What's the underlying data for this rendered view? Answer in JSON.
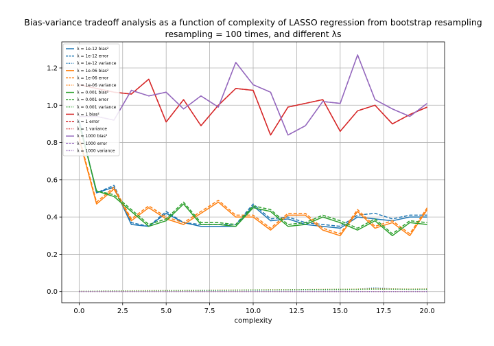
{
  "chart_data": {
    "type": "line",
    "title_line1": "Bias-variance tradeoff analysis as a function of complexity of LASSO regression from bootstrap resampling",
    "title_line2": "resampling = 100 times, and different λs",
    "xlabel": "complexity",
    "ylabel": "",
    "xlim": [
      -1,
      21
    ],
    "ylim": [
      -0.06,
      1.34
    ],
    "xticks": [
      0.0,
      2.5,
      5.0,
      7.5,
      10.0,
      12.5,
      15.0,
      17.5,
      20.0
    ],
    "xtick_labels": [
      "0.0",
      "2.5",
      "5.0",
      "7.5",
      "10.0",
      "12.5",
      "15.0",
      "17.5",
      "20.0"
    ],
    "yticks": [
      0.0,
      0.2,
      0.4,
      0.6,
      0.8,
      1.0,
      1.2
    ],
    "ytick_labels": [
      "0.0",
      "0.2",
      "0.4",
      "0.6",
      "0.8",
      "1.0",
      "1.2"
    ],
    "grid": true,
    "legend_position": "top-left",
    "x": [
      0,
      1,
      2,
      3,
      4,
      5,
      6,
      7,
      8,
      9,
      10,
      11,
      12,
      13,
      14,
      15,
      16,
      17,
      18,
      19,
      20
    ],
    "series": [
      {
        "name": "λ = 1e-12 bias²",
        "color": "#1f77b4",
        "style": "solid",
        "values": [
          0.92,
          0.53,
          0.56,
          0.36,
          0.35,
          0.42,
          0.37,
          0.35,
          0.35,
          0.35,
          0.46,
          0.38,
          0.39,
          0.36,
          0.35,
          0.34,
          0.4,
          0.39,
          0.38,
          0.4,
          0.4
        ]
      },
      {
        "name": "λ = 1e-12 error",
        "color": "#1f77b4",
        "style": "dashed",
        "values": [
          0.92,
          0.53,
          0.57,
          0.37,
          0.35,
          0.43,
          0.37,
          0.36,
          0.36,
          0.36,
          0.47,
          0.39,
          0.4,
          0.37,
          0.36,
          0.35,
          0.41,
          0.42,
          0.39,
          0.41,
          0.41
        ]
      },
      {
        "name": "λ = 1e-12 variance",
        "color": "#1f77b4",
        "style": "dotted",
        "values": [
          0.001,
          0.002,
          0.003,
          0.003,
          0.004,
          0.005,
          0.005,
          0.006,
          0.006,
          0.007,
          0.007,
          0.008,
          0.008,
          0.009,
          0.009,
          0.01,
          0.012,
          0.02,
          0.014,
          0.012,
          0.012
        ]
      },
      {
        "name": "λ = 1e-06 bias²",
        "color": "#ff7f0e",
        "style": "solid",
        "values": [
          0.82,
          0.47,
          0.55,
          0.38,
          0.45,
          0.39,
          0.36,
          0.42,
          0.48,
          0.4,
          0.4,
          0.33,
          0.41,
          0.41,
          0.33,
          0.3,
          0.43,
          0.34,
          0.37,
          0.3,
          0.44
        ]
      },
      {
        "name": "λ = 1e-06 error",
        "color": "#ff7f0e",
        "style": "dashed",
        "values": [
          0.83,
          0.48,
          0.56,
          0.39,
          0.46,
          0.4,
          0.37,
          0.43,
          0.49,
          0.41,
          0.41,
          0.34,
          0.42,
          0.42,
          0.34,
          0.31,
          0.44,
          0.35,
          0.38,
          0.31,
          0.45
        ]
      },
      {
        "name": "λ = 1e-06 variance",
        "color": "#ff7f0e",
        "style": "dotted",
        "values": [
          0.001,
          0.002,
          0.003,
          0.004,
          0.005,
          0.006,
          0.006,
          0.007,
          0.008,
          0.008,
          0.009,
          0.01,
          0.01,
          0.011,
          0.012,
          0.012,
          0.013,
          0.015,
          0.014,
          0.013,
          0.014
        ]
      },
      {
        "name": "λ = 0.001 bias²",
        "color": "#2ca02c",
        "style": "solid",
        "values": [
          0.9,
          0.54,
          0.51,
          0.43,
          0.35,
          0.38,
          0.47,
          0.36,
          0.36,
          0.35,
          0.45,
          0.43,
          0.35,
          0.36,
          0.4,
          0.37,
          0.33,
          0.38,
          0.3,
          0.37,
          0.36
        ]
      },
      {
        "name": "λ = 0.001 error",
        "color": "#2ca02c",
        "style": "dashed",
        "values": [
          0.9,
          0.54,
          0.52,
          0.44,
          0.36,
          0.39,
          0.48,
          0.37,
          0.37,
          0.36,
          0.46,
          0.44,
          0.36,
          0.37,
          0.41,
          0.38,
          0.34,
          0.39,
          0.31,
          0.38,
          0.37
        ]
      },
      {
        "name": "λ = 0.001 variance",
        "color": "#2ca02c",
        "style": "dotted",
        "values": [
          0.001,
          0.002,
          0.003,
          0.003,
          0.004,
          0.005,
          0.006,
          0.007,
          0.007,
          0.008,
          0.009,
          0.009,
          0.01,
          0.011,
          0.011,
          0.012,
          0.012,
          0.013,
          0.013,
          0.012,
          0.013
        ]
      },
      {
        "name": "λ = 1 bias²",
        "color": "#d62728",
        "style": "solid",
        "values": [
          1.11,
          1.09,
          1.07,
          1.06,
          1.14,
          0.91,
          1.03,
          0.89,
          1.0,
          1.09,
          1.08,
          0.84,
          0.99,
          1.01,
          1.03,
          0.86,
          0.97,
          1.0,
          0.9,
          0.95,
          0.99
        ]
      },
      {
        "name": "λ = 1 error",
        "color": "#d62728",
        "style": "dashed",
        "values": [
          1.11,
          1.09,
          1.07,
          1.06,
          1.14,
          0.91,
          1.03,
          0.89,
          1.0,
          1.09,
          1.08,
          0.84,
          0.99,
          1.01,
          1.03,
          0.86,
          0.97,
          1.0,
          0.9,
          0.95,
          0.99
        ]
      },
      {
        "name": "λ = 1 variance",
        "color": "#d62728",
        "style": "dotted",
        "values": [
          0.0,
          0.0,
          0.0,
          0.0,
          0.0,
          0.0,
          0.0,
          0.0,
          0.0,
          0.0,
          0.0,
          0.0,
          0.0,
          0.0,
          0.0,
          0.0,
          0.0,
          0.0,
          0.0,
          0.0,
          0.0
        ]
      },
      {
        "name": "λ = 1000 bias²",
        "color": "#9467bd",
        "style": "solid",
        "values": [
          0.94,
          0.94,
          0.92,
          1.08,
          1.05,
          1.07,
          0.98,
          1.05,
          0.99,
          1.23,
          1.11,
          1.07,
          0.84,
          0.89,
          1.02,
          1.01,
          1.27,
          1.03,
          0.98,
          0.94,
          1.01
        ]
      },
      {
        "name": "λ = 1000 error",
        "color": "#9467bd",
        "style": "dashed",
        "values": [
          0.94,
          0.94,
          0.92,
          1.08,
          1.05,
          1.07,
          0.98,
          1.05,
          0.99,
          1.23,
          1.11,
          1.07,
          0.84,
          0.89,
          1.02,
          1.01,
          1.27,
          1.03,
          0.98,
          0.94,
          1.01
        ]
      },
      {
        "name": "λ = 1000 variance",
        "color": "#9467bd",
        "style": "dotted",
        "values": [
          0.0,
          0.0,
          0.0,
          0.0,
          0.0,
          0.0,
          0.0,
          0.0,
          0.0,
          0.0,
          0.0,
          0.0,
          0.0,
          0.0,
          0.0,
          0.0,
          0.0,
          0.0,
          0.0,
          0.0,
          0.0
        ]
      }
    ]
  }
}
